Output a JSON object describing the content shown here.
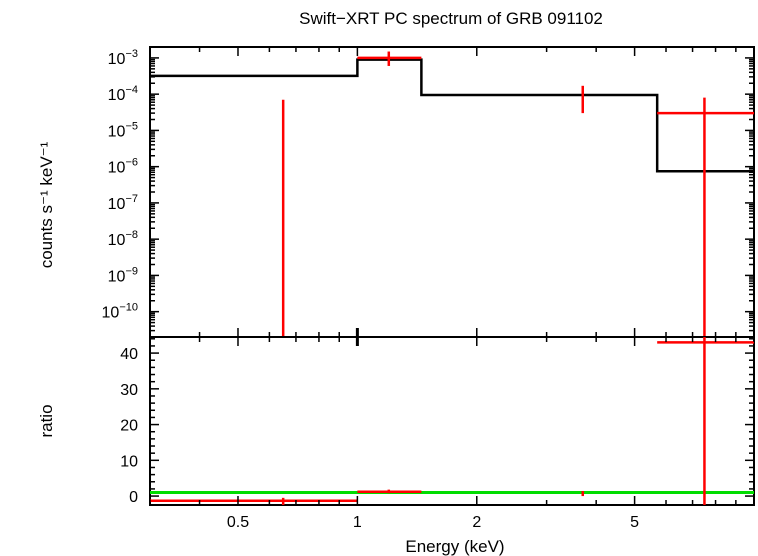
{
  "chart_data": {
    "type": "line",
    "title": "Swift−XRT PC spectrum of GRB 091102",
    "x_axis": {
      "label": "Energy (keV)",
      "scale": "log",
      "range": [
        0.3,
        10
      ],
      "ticks": [
        0.5,
        1,
        2,
        5
      ],
      "tick_labels": [
        "0.5",
        "1",
        "2",
        "5"
      ]
    },
    "top_panel": {
      "ylabel": "counts s⁻¹ keV⁻¹",
      "yscale": "log",
      "ylim": [
        2e-11,
        0.002
      ],
      "y_ticks": [
        {
          "value": 0.001,
          "base": "10",
          "exp": "−3"
        },
        {
          "value": 0.0001,
          "base": "10",
          "exp": "−4"
        },
        {
          "value": 1e-05,
          "base": "10",
          "exp": "−5"
        },
        {
          "value": 1e-06,
          "base": "10",
          "exp": "−6"
        },
        {
          "value": 1e-07,
          "base": "10",
          "exp": "−7"
        },
        {
          "value": 1e-08,
          "base": "10",
          "exp": "−8"
        },
        {
          "value": 1e-09,
          "base": "10",
          "exp": "−9"
        },
        {
          "value": 1e-10,
          "base": "10",
          "exp": "−10"
        }
      ],
      "data_points": [
        {
          "x": 0.65,
          "y_low": 2e-11,
          "y_high": 7e-05,
          "x_low": null,
          "x_high": null
        },
        {
          "x": 1.2,
          "y": 0.001,
          "y_low": 0.0006,
          "y_high": 0.0015,
          "x_low": 1.0,
          "x_high": 1.45
        },
        {
          "x": 3.7,
          "y_low": 3e-05,
          "y_high": 0.00017,
          "x_low": null,
          "x_high": null
        },
        {
          "x": 7.5,
          "y": 3e-05,
          "y_low": 2e-11,
          "y_high": 8e-05,
          "x_low": 5.7,
          "x_high": 10
        }
      ],
      "model_steps": [
        {
          "x_low": 0.3,
          "x_high": 1.0,
          "y": 0.00032
        },
        {
          "x_low": 1.0,
          "x_high": 1.45,
          "y": 0.0009
        },
        {
          "x_low": 1.45,
          "x_high": 5.7,
          "y": 9.5e-05
        },
        {
          "x_low": 5.7,
          "x_high": 10,
          "y": 7.5e-07
        }
      ]
    },
    "bottom_panel": {
      "ylabel": "ratio",
      "yscale": "linear",
      "ylim": [
        -2.5,
        44.5
      ],
      "y_ticks": [
        0,
        10,
        20,
        30,
        40
      ],
      "data_points": [
        {
          "x": 0.65,
          "y": -1.3,
          "y_low": -2.5,
          "y_high": -0.5,
          "x_low": 0.3,
          "x_high": 1.0
        },
        {
          "x": 1.2,
          "y": 1.2,
          "y_low": 0.8,
          "y_high": 1.8,
          "x_low": 1.0,
          "x_high": 1.45
        },
        {
          "x": 3.7,
          "y": 0.6,
          "y_low": 0.0,
          "y_high": 1.4,
          "x_low": null,
          "x_high": null
        },
        {
          "x": 7.5,
          "y": 43.0,
          "y_low": -2.5,
          "y_high": 44.5,
          "x_low": 5.7,
          "x_high": 10
        }
      ],
      "reference_line": {
        "y": 1
      }
    },
    "colors": {
      "data": "#ff0000",
      "model": "#000000",
      "reference": "#00dd00",
      "frame": "#000000"
    }
  }
}
